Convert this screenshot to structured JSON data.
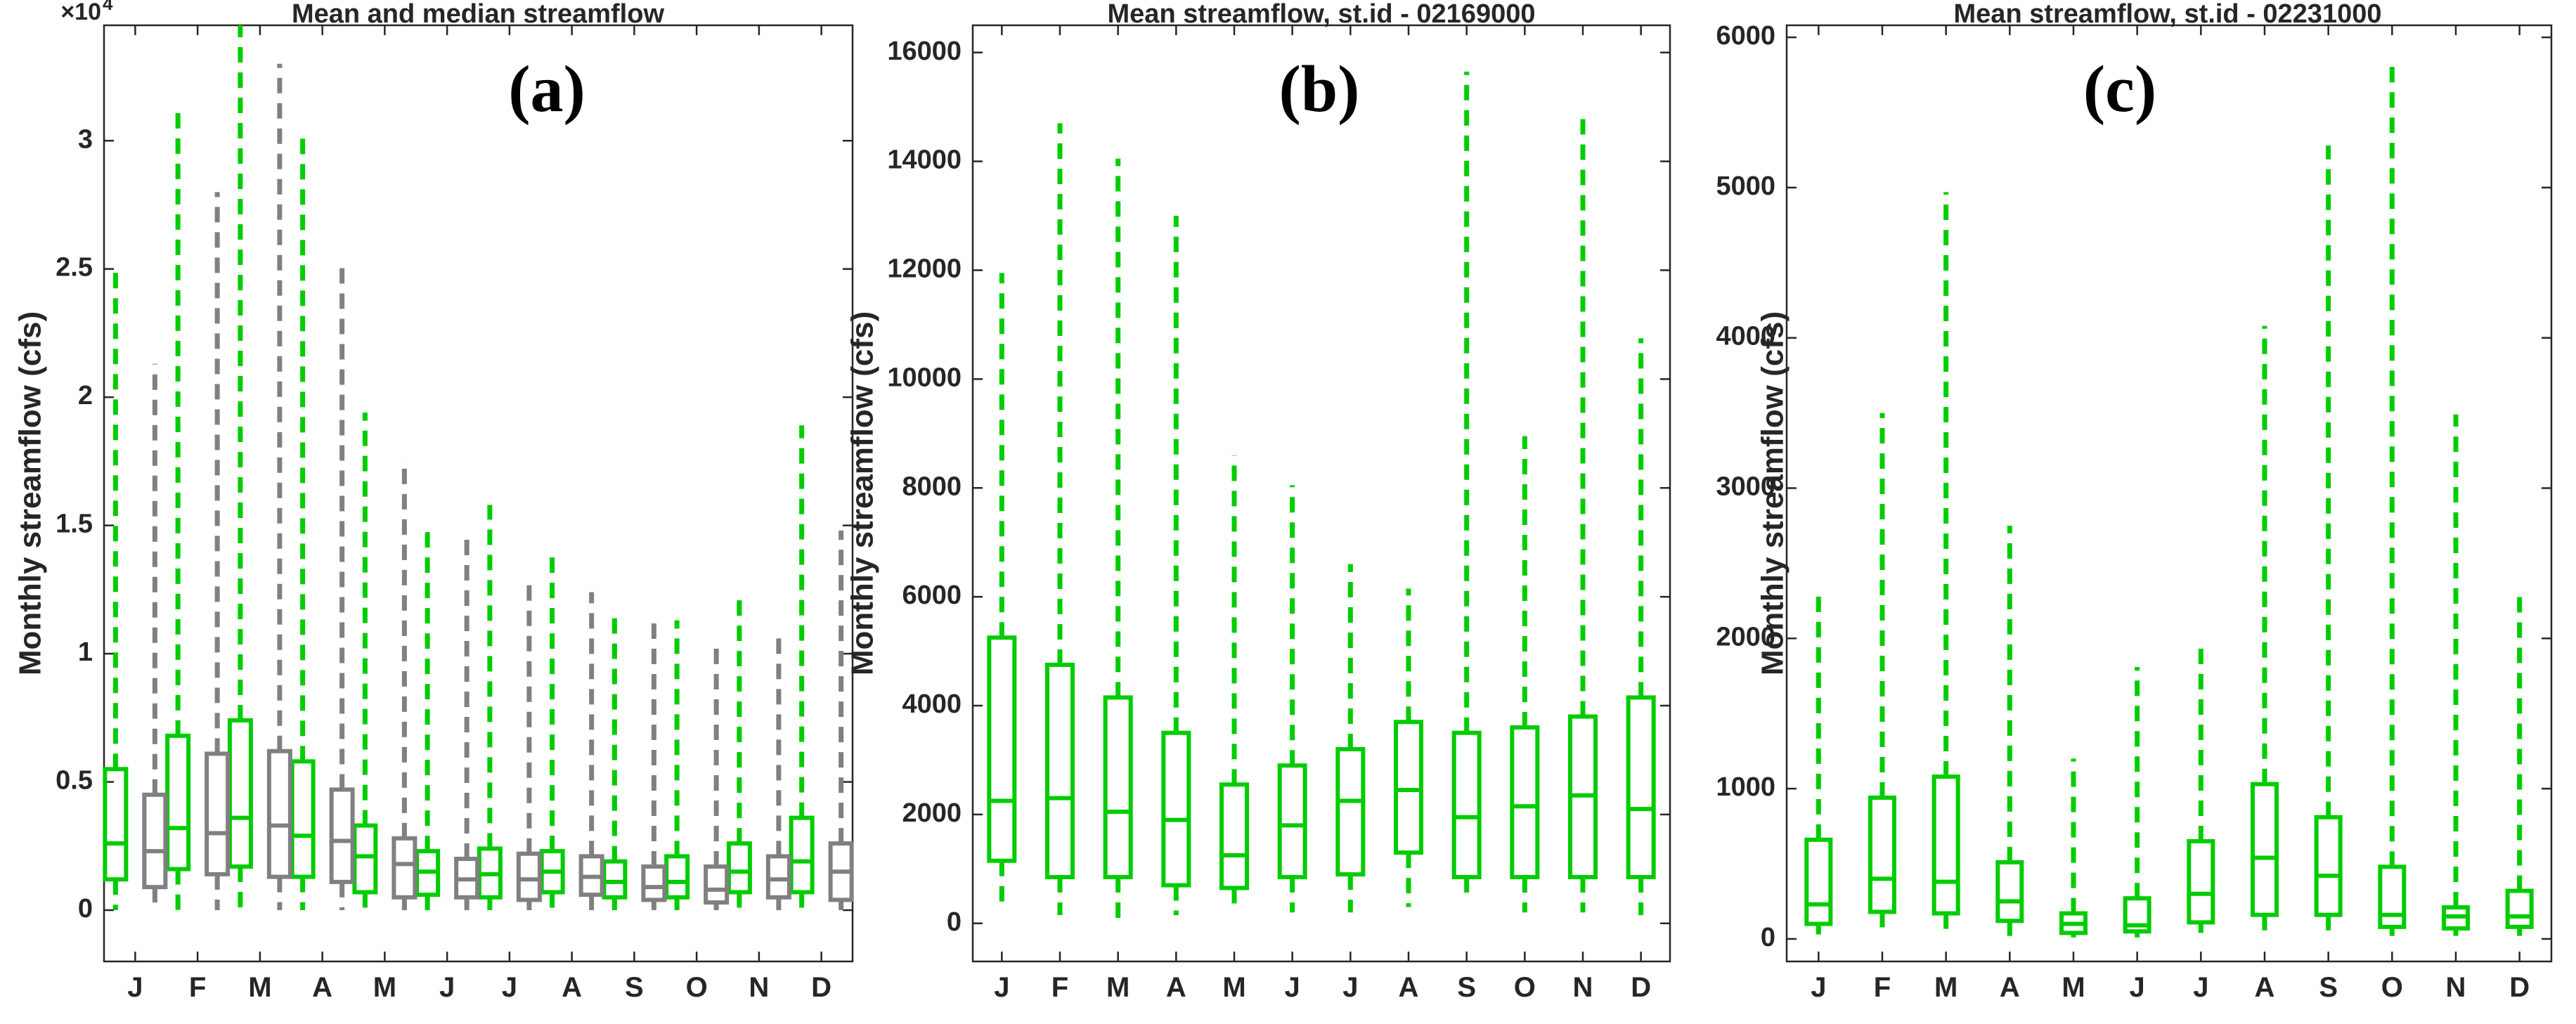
{
  "colors": {
    "mean": "#00cc00",
    "median": "#808080",
    "axis": "#262626"
  },
  "panels": [
    {
      "title": "Mean and median streamflow",
      "letter": "(a)",
      "ylabel": "Monthly streamflow (cfs)",
      "exponent_base": "×10",
      "exponent_power": "4",
      "ylim": [
        -0.2,
        3.45
      ],
      "yticks": [
        0,
        0.5,
        1,
        1.5,
        2,
        2.5,
        3
      ],
      "ytick_labels": [
        "0",
        "0.5",
        "1",
        "1.5",
        "2",
        "2.5",
        "3"
      ],
      "categories": [
        "J",
        "F",
        "M",
        "A",
        "M",
        "J",
        "J",
        "A",
        "S",
        "O",
        "N",
        "D"
      ],
      "series": [
        {
          "name": "mean",
          "color": "#00cc00",
          "boxes": [
            {
              "min": 0.0,
              "q1": 0.12,
              "median": 0.26,
              "q3": 0.55,
              "max": 2.52
            },
            {
              "min": 0.0,
              "q1": 0.16,
              "median": 0.32,
              "q3": 0.68,
              "max": 3.13
            },
            {
              "min": 0.0,
              "q1": 0.17,
              "median": 0.36,
              "q3": 0.74,
              "max": 3.45
            },
            {
              "min": 0.0,
              "q1": 0.13,
              "median": 0.29,
              "q3": 0.58,
              "max": 3.03
            },
            {
              "min": 0.0,
              "q1": 0.07,
              "median": 0.21,
              "q3": 0.33,
              "max": 1.94
            },
            {
              "min": 0.0,
              "q1": 0.06,
              "median": 0.15,
              "q3": 0.23,
              "max": 1.49
            },
            {
              "min": 0.0,
              "q1": 0.05,
              "median": 0.14,
              "q3": 0.24,
              "max": 1.58
            },
            {
              "min": 0.0,
              "q1": 0.07,
              "median": 0.15,
              "q3": 0.23,
              "max": 1.39
            },
            {
              "min": 0.0,
              "q1": 0.05,
              "median": 0.11,
              "q3": 0.19,
              "max": 1.14
            },
            {
              "min": 0.0,
              "q1": 0.05,
              "median": 0.11,
              "q3": 0.21,
              "max": 1.13
            },
            {
              "min": 0.0,
              "q1": 0.07,
              "median": 0.15,
              "q3": 0.26,
              "max": 1.23
            },
            {
              "min": 0.0,
              "q1": 0.07,
              "median": 0.19,
              "q3": 0.36,
              "max": 1.89
            }
          ]
        },
        {
          "name": "median",
          "color": "#808080",
          "boxes": [
            {
              "min": 0.0,
              "q1": 0.09,
              "median": 0.23,
              "q3": 0.45,
              "max": 2.13
            },
            {
              "min": 0.0,
              "q1": 0.14,
              "median": 0.3,
              "q3": 0.61,
              "max": 2.8
            },
            {
              "min": 0.0,
              "q1": 0.13,
              "median": 0.33,
              "q3": 0.62,
              "max": 3.3
            },
            {
              "min": 0.0,
              "q1": 0.11,
              "median": 0.27,
              "q3": 0.47,
              "max": 2.53
            },
            {
              "min": 0.0,
              "q1": 0.05,
              "median": 0.18,
              "q3": 0.28,
              "max": 1.76
            },
            {
              "min": 0.0,
              "q1": 0.05,
              "median": 0.12,
              "q3": 0.2,
              "max": 1.45
            },
            {
              "min": 0.0,
              "q1": 0.04,
              "median": 0.12,
              "q3": 0.22,
              "max": 1.28
            },
            {
              "min": 0.0,
              "q1": 0.06,
              "median": 0.13,
              "q3": 0.21,
              "max": 1.24
            },
            {
              "min": 0.0,
              "q1": 0.04,
              "median": 0.09,
              "q3": 0.17,
              "max": 1.13
            },
            {
              "min": 0.0,
              "q1": 0.03,
              "median": 0.08,
              "q3": 0.17,
              "max": 1.04
            },
            {
              "min": 0.0,
              "q1": 0.05,
              "median": 0.12,
              "q3": 0.21,
              "max": 1.08
            },
            {
              "min": 0.0,
              "q1": 0.04,
              "median": 0.15,
              "q3": 0.26,
              "max": 1.48
            }
          ]
        }
      ]
    },
    {
      "title": "Mean streamflow, st.id - 02169000",
      "letter": "(b)",
      "ylabel": "Monthly streamflow (cfs)",
      "ylim": [
        -700,
        16500
      ],
      "yticks": [
        0,
        2000,
        4000,
        6000,
        8000,
        10000,
        12000,
        14000,
        16000
      ],
      "ytick_labels": [
        "0",
        "2000",
        "4000",
        "6000",
        "8000",
        "10000",
        "12000",
        "14000",
        "16000"
      ],
      "categories": [
        "J",
        "F",
        "M",
        "A",
        "M",
        "J",
        "J",
        "A",
        "S",
        "O",
        "N",
        "D"
      ],
      "series": [
        {
          "name": "mean",
          "color": "#00cc00",
          "boxes": [
            {
              "min": 300,
              "q1": 1150,
              "median": 2250,
              "q3": 5250,
              "max": 11950
            },
            {
              "min": 150,
              "q1": 850,
              "median": 2300,
              "q3": 4750,
              "max": 14700
            },
            {
              "min": 100,
              "q1": 850,
              "median": 2050,
              "q3": 4150,
              "max": 14050
            },
            {
              "min": 150,
              "q1": 700,
              "median": 1900,
              "q3": 3500,
              "max": 13000
            },
            {
              "min": 200,
              "q1": 650,
              "median": 1250,
              "q3": 2550,
              "max": 8600
            },
            {
              "min": 200,
              "q1": 850,
              "median": 1800,
              "q3": 2900,
              "max": 8050
            },
            {
              "min": 200,
              "q1": 900,
              "median": 2250,
              "q3": 3200,
              "max": 6600
            },
            {
              "min": 300,
              "q1": 1300,
              "median": 2450,
              "q3": 3700,
              "max": 6150
            },
            {
              "min": 500,
              "q1": 850,
              "median": 1950,
              "q3": 3500,
              "max": 15650
            },
            {
              "min": 200,
              "q1": 850,
              "median": 2150,
              "q3": 3600,
              "max": 8950
            },
            {
              "min": 200,
              "q1": 850,
              "median": 2350,
              "q3": 3800,
              "max": 14800
            },
            {
              "min": 150,
              "q1": 850,
              "median": 2100,
              "q3": 4150,
              "max": 10750
            }
          ]
        }
      ]
    },
    {
      "title": "Mean streamflow, st.id - 02231000",
      "letter": "(c)",
      "ylabel": "Monthly streamflow (cfs)",
      "ylim": [
        -150,
        6080
      ],
      "yticks": [
        0,
        1000,
        2000,
        3000,
        4000,
        5000,
        6000
      ],
      "ytick_labels": [
        "0",
        "1000",
        "2000",
        "3000",
        "4000",
        "5000",
        "6000"
      ],
      "categories": [
        "J",
        "F",
        "M",
        "A",
        "M",
        "J",
        "J",
        "A",
        "S",
        "O",
        "N",
        "D"
      ],
      "series": [
        {
          "name": "mean",
          "color": "#00cc00",
          "boxes": [
            {
              "min": 30,
              "q1": 100,
              "median": 230,
              "q3": 660,
              "max": 2280
            },
            {
              "min": 30,
              "q1": 180,
              "median": 400,
              "q3": 940,
              "max": 3500
            },
            {
              "min": 20,
              "q1": 170,
              "median": 380,
              "q3": 1080,
              "max": 4970
            },
            {
              "min": 20,
              "q1": 120,
              "median": 250,
              "q3": 510,
              "max": 2750
            },
            {
              "min": 10,
              "q1": 40,
              "median": 100,
              "q3": 170,
              "max": 1200
            },
            {
              "min": 10,
              "q1": 50,
              "median": 90,
              "q3": 270,
              "max": 1810
            },
            {
              "min": 40,
              "q1": 110,
              "median": 300,
              "q3": 650,
              "max": 1960
            },
            {
              "min": 20,
              "q1": 160,
              "median": 540,
              "q3": 1030,
              "max": 4080
            },
            {
              "min": 30,
              "q1": 160,
              "median": 420,
              "q3": 810,
              "max": 5280
            },
            {
              "min": 20,
              "q1": 80,
              "median": 160,
              "q3": 480,
              "max": 5820
            },
            {
              "min": 20,
              "q1": 70,
              "median": 150,
              "q3": 210,
              "max": 3490
            },
            {
              "min": 20,
              "q1": 80,
              "median": 150,
              "q3": 320,
              "max": 2280
            }
          ]
        }
      ]
    }
  ]
}
